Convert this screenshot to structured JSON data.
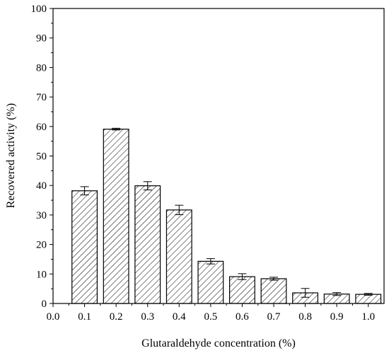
{
  "chart_data": {
    "type": "bar",
    "title": "",
    "xlabel": "Glutaraldehyde concentration (%)",
    "ylabel": "Recovered activity (%)",
    "x": [
      0.1,
      0.2,
      0.3,
      0.4,
      0.5,
      0.6,
      0.7,
      0.8,
      0.9,
      1.0
    ],
    "values": [
      38.2,
      59.1,
      39.9,
      31.7,
      14.3,
      9.1,
      8.4,
      3.6,
      3.2,
      3.1
    ],
    "errors": [
      1.4,
      0.3,
      1.4,
      1.6,
      0.9,
      1.0,
      0.5,
      1.5,
      0.5,
      0.3
    ],
    "xlim": [
      0.0,
      1.05
    ],
    "ylim": [
      0,
      100
    ],
    "xticks": [
      "0.0",
      "0.1",
      "0.2",
      "0.3",
      "0.4",
      "0.5",
      "0.6",
      "0.7",
      "0.8",
      "0.9",
      "1.0"
    ],
    "yticks": [
      "0",
      "10",
      "20",
      "30",
      "40",
      "50",
      "60",
      "70",
      "80",
      "90",
      "100"
    ],
    "bar_fill": "diagonal-hatch",
    "grid": false,
    "legend": "none"
  },
  "colors": {
    "bar_stroke": "#000000",
    "hatch": "#000000",
    "background": "#ffffff"
  }
}
